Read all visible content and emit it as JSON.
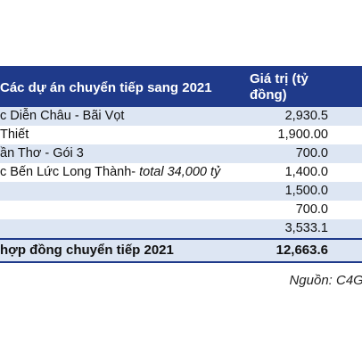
{
  "table": {
    "header": {
      "name": "Các dự án chuyển tiếp sang 2021",
      "value": "Giá trị (tỷ đồng)"
    },
    "rows": [
      {
        "name": "c Diễn Châu - Bãi Vọt",
        "value": "2,930.5"
      },
      {
        "name": "Thiết",
        "value": "1,900.00"
      },
      {
        "name": "ần Thơ - Gói 3",
        "value": "700.0"
      },
      {
        "name": "c Bến Lức Long Thành- ",
        "name_italic": "total 34,000 tỷ",
        "value": "1,400.0"
      },
      {
        "name": "",
        "value": "1,500.0"
      },
      {
        "name": "",
        "value": "700.0"
      },
      {
        "name": "",
        "value": "3,533.1"
      }
    ],
    "total": {
      "name": "hợp đồng chuyển tiếp 2021",
      "value": "12,663.6"
    }
  },
  "source": "Nguồn: C4G,"
}
